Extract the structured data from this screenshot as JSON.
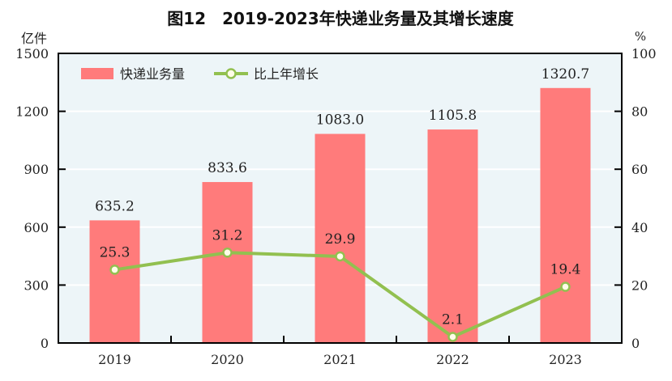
{
  "chart_data": {
    "type": "bar+line",
    "title": "图12　2019-2023年快递业务量及其增长速度",
    "categories": [
      "2019",
      "2020",
      "2021",
      "2022",
      "2023"
    ],
    "y_left": {
      "label": "亿件",
      "range": [
        0,
        1500
      ],
      "ticks": [
        0,
        300,
        600,
        900,
        1200,
        1500
      ]
    },
    "y_right": {
      "label": "%",
      "range": [
        0,
        100
      ],
      "ticks": [
        0,
        20,
        40,
        60,
        80,
        100
      ]
    },
    "series": [
      {
        "name": "快递业务量",
        "type": "bar",
        "axis": "left",
        "values": [
          635.2,
          833.6,
          1083.0,
          1105.8,
          1320.7
        ],
        "labels": [
          "635.2",
          "833.6",
          "1083.0",
          "1105.8",
          "1320.7"
        ]
      },
      {
        "name": "比上年增长",
        "type": "line",
        "axis": "right",
        "values": [
          25.3,
          31.2,
          29.9,
          2.1,
          19.4
        ],
        "labels": [
          "25.3",
          "31.2",
          "29.9",
          "2.1",
          "19.4"
        ]
      }
    ],
    "grid": true,
    "legend": "top-left",
    "colors": {
      "bar": "#ff7b7b",
      "line": "#92c050",
      "background": "#edf5f8",
      "marker_fill": "#fffde8"
    }
  }
}
